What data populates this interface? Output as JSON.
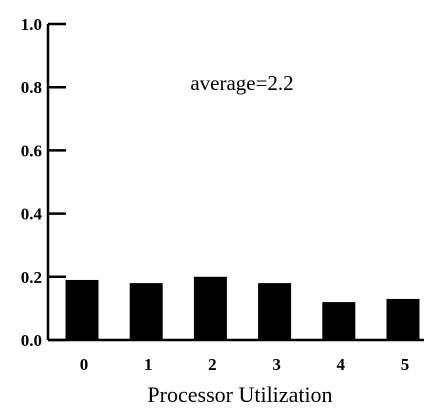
{
  "chart_data": {
    "type": "bar",
    "categories": [
      "0",
      "1",
      "2",
      "3",
      "4",
      "5"
    ],
    "values": [
      0.19,
      0.18,
      0.2,
      0.18,
      0.12,
      0.13
    ],
    "title": "",
    "xlabel": "Processor Utilization",
    "ylabel": "",
    "ylim": [
      0.0,
      1.0
    ],
    "yticks": [
      "0.0",
      "0.2",
      "0.4",
      "0.6",
      "0.8",
      "1.0"
    ],
    "annotation": "average=2.2",
    "bar_color": "#000000",
    "grid": false,
    "legend": "none"
  }
}
